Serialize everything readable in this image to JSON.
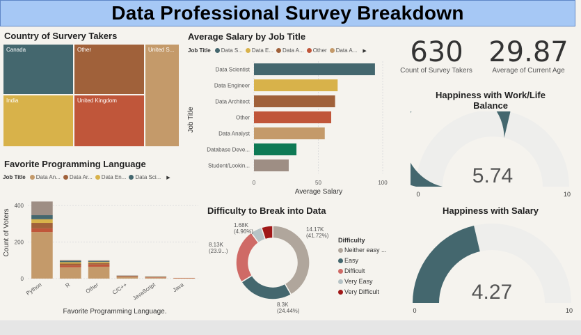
{
  "title": "Data Professional Survey Breakdown",
  "treemap": {
    "title": "Country of Survery Takers",
    "cells": [
      {
        "label": "Canada",
        "color": "#44676e"
      },
      {
        "label": "Other",
        "color": "#a0613a"
      },
      {
        "label": "United S...",
        "color": "#c49a6a"
      },
      {
        "label": "India",
        "color": "#d8b24a"
      },
      {
        "label": "United Kingdom",
        "color": "#c0563a"
      }
    ]
  },
  "salary": {
    "title": "Average Salary by Job Title",
    "legend_label": "Job Title",
    "legend": [
      {
        "name": "Data S...",
        "color": "#44676e"
      },
      {
        "name": "Data E...",
        "color": "#d8b24a"
      },
      {
        "name": "Data A...",
        "color": "#a0613a"
      },
      {
        "name": "Other",
        "color": "#c0563a"
      },
      {
        "name": "Data A...",
        "color": "#c49a6a"
      }
    ],
    "chart_data": {
      "type": "bar",
      "orientation": "horizontal",
      "categories": [
        "Data Scientist",
        "Data Engineer",
        "Data Architect",
        "Other",
        "Data Analyst",
        "Database Deve...",
        "Student/Lookin..."
      ],
      "values": [
        94,
        65,
        63,
        60,
        55,
        33,
        27
      ],
      "colors": [
        "#44676e",
        "#d8b24a",
        "#a0613a",
        "#c0563a",
        "#c49a6a",
        "#0e7a55",
        "#9e8e84"
      ],
      "xlabel": "Average Salary",
      "ylabel": "Job Title",
      "xlim": [
        0,
        100
      ],
      "xticks": [
        "0",
        "50",
        "100"
      ]
    }
  },
  "kpis": [
    {
      "value": "630",
      "label": "Count of Survey Takers"
    },
    {
      "value": "29.87",
      "label": "Average of Current Age"
    }
  ],
  "gauge_work": {
    "title": "Happiness with Work/Life Balance",
    "value": 5.74,
    "value_label": "5.74",
    "min": 0,
    "max": 10,
    "min_label": "0",
    "max_label": "10",
    "fill_color": "#44676e"
  },
  "gauge_salary": {
    "title": "Happiness with Salary",
    "value": 4.27,
    "value_label": "4.27",
    "min": 0,
    "max": 10,
    "min_label": "0",
    "max_label": "10",
    "fill_color": "#44676e"
  },
  "language": {
    "title": "Favorite Programming Language",
    "legend_label": "Job Title",
    "legend": [
      {
        "name": "Data An...",
        "color": "#c49a6a"
      },
      {
        "name": "Data Ar...",
        "color": "#a0613a"
      },
      {
        "name": "Data En...",
        "color": "#d8b24a"
      },
      {
        "name": "Data Sci...",
        "color": "#44676e"
      }
    ],
    "chart_data": {
      "type": "bar",
      "stacked": true,
      "categories": [
        "Python",
        "R",
        "Other",
        "C/C++",
        "JavaScript",
        "Java"
      ],
      "series": [
        {
          "name": "Data An...",
          "color": "#c49a6a",
          "values": [
            255,
            62,
            65,
            8,
            5,
            3
          ]
        },
        {
          "name": "Other",
          "color": "#c0563a",
          "values": [
            20,
            10,
            12,
            3,
            2,
            1
          ]
        },
        {
          "name": "Data Ar...",
          "color": "#a0613a",
          "values": [
            30,
            10,
            8,
            2,
            2,
            0
          ]
        },
        {
          "name": "Data En...",
          "color": "#d8b24a",
          "values": [
            20,
            8,
            6,
            2,
            1,
            0
          ]
        },
        {
          "name": "Data Sci...",
          "color": "#44676e",
          "values": [
            22,
            6,
            4,
            1,
            1,
            0
          ]
        },
        {
          "name": "Other",
          "color": "#9e8e84",
          "values": [
            75,
            6,
            5,
            1,
            1,
            0
          ]
        }
      ],
      "xlabel": "Favorite Programming Language.",
      "ylabel": "Count of Voters",
      "ylim": [
        0,
        450
      ],
      "yticks": [
        "0",
        "200",
        "400"
      ]
    }
  },
  "difficulty": {
    "title": "Difficulty to Break into Data",
    "legend_title": "Difficulty",
    "chart_data": {
      "type": "pie",
      "donut": true,
      "slices": [
        {
          "name": "Neither easy ...",
          "value": 41.72,
          "color": "#b0a69c",
          "label_a": "14.17K",
          "label_b": "(41.72%)"
        },
        {
          "name": "Easy",
          "value": 24.44,
          "color": "#44676e",
          "label_a": "8.3K",
          "label_b": "(24.44%)"
        },
        {
          "name": "Difficult",
          "value": 23.9,
          "color": "#cf6a66",
          "label_a": "8.13K",
          "label_b": "(23.9...)"
        },
        {
          "name": "Very Easy",
          "value": 4.96,
          "color": "#b7c3c6",
          "label_a": "1.68K",
          "label_b": "(4.96%)"
        },
        {
          "name": "Very Difficult",
          "value": 4.98,
          "color": "#a01818",
          "label_a": "",
          "label_b": ""
        }
      ]
    }
  }
}
